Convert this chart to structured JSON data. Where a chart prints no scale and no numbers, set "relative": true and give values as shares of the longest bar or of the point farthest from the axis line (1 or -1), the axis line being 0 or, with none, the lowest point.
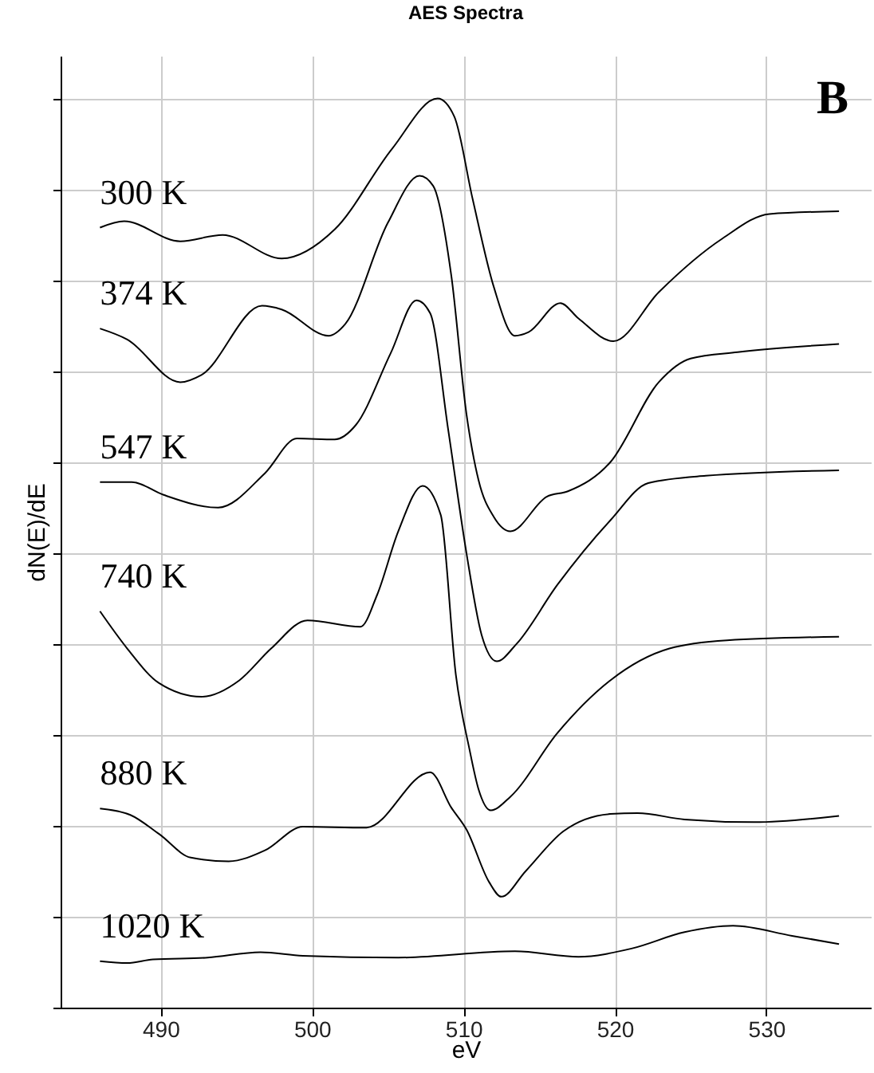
{
  "chart_data": {
    "type": "line",
    "title": "AES Spectra",
    "xlabel": "eV",
    "ylabel": "dN(E)/dE",
    "annotations": [
      "B"
    ],
    "relative": true,
    "grid": true,
    "legend": "left",
    "xlim": [
      483.4,
      536.9
    ],
    "xticks": [
      490,
      500,
      510,
      520,
      530
    ],
    "series": [
      {
        "name": "300 K",
        "color": "#000000",
        "x": [
          486.0,
          487.6,
          491.3,
          494.1,
          498.0,
          501.5,
          505.3,
          508.3,
          509.4,
          510.6,
          512.0,
          513.4,
          514.3,
          516.4,
          517.6,
          519.9,
          522.9,
          527.1,
          530.2,
          534.8
        ],
        "values": [
          0.858,
          0.865,
          0.843,
          0.85,
          0.824,
          0.856,
          0.945,
          1.0,
          0.98,
          0.89,
          0.793,
          0.739,
          0.743,
          0.775,
          0.758,
          0.733,
          0.787,
          0.846,
          0.873,
          0.876
        ]
      },
      {
        "name": "374 K",
        "color": "#000000",
        "x": [
          486.0,
          487.8,
          491.3,
          492.7,
          496.7,
          498.0,
          501.1,
          502.2,
          505.0,
          507.1,
          508.0,
          509.2,
          510.2,
          511.0,
          512.0,
          513.1,
          515.5,
          516.9,
          519.7,
          522.9,
          525.0,
          528.1,
          534.8
        ],
        "values": [
          0.747,
          0.735,
          0.688,
          0.696,
          0.772,
          0.768,
          0.739,
          0.752,
          0.863,
          0.915,
          0.904,
          0.805,
          0.653,
          0.58,
          0.54,
          0.524,
          0.562,
          0.568,
          0.6,
          0.688,
          0.714,
          0.721,
          0.73
        ]
      },
      {
        "name": "547 K",
        "color": "#000000",
        "x": [
          486.0,
          488.1,
          490.2,
          493.8,
          496.9,
          499.0,
          501.5,
          502.9,
          505.2,
          506.9,
          507.8,
          509.0,
          510.2,
          511.2,
          512.2,
          513.5,
          516.2,
          519.7,
          522.2,
          526.0,
          534.8
        ],
        "values": [
          0.578,
          0.578,
          0.564,
          0.55,
          0.588,
          0.626,
          0.625,
          0.641,
          0.72,
          0.778,
          0.764,
          0.635,
          0.5,
          0.41,
          0.381,
          0.4,
          0.465,
          0.536,
          0.577,
          0.585,
          0.591
        ]
      },
      {
        "name": "740 K",
        "color": "#000000",
        "x": [
          486.0,
          487.8,
          489.9,
          492.7,
          495.2,
          497.3,
          499.7,
          503.2,
          504.3,
          505.7,
          507.3,
          508.5,
          509.5,
          510.4,
          511.0,
          511.8,
          513.1,
          516.2,
          519.7,
          523.6,
          527.4,
          534.8
        ],
        "values": [
          0.436,
          0.395,
          0.357,
          0.342,
          0.36,
          0.395,
          0.426,
          0.419,
          0.454,
          0.524,
          0.574,
          0.542,
          0.366,
          0.284,
          0.24,
          0.217,
          0.232,
          0.302,
          0.36,
          0.395,
          0.404,
          0.408
        ]
      },
      {
        "name": "880 K",
        "color": "#000000",
        "x": [
          486.0,
          488.0,
          489.9,
          492.0,
          494.5,
          496.9,
          499.4,
          503.6,
          507.8,
          509.2,
          510.2,
          511.7,
          512.5,
          514.1,
          516.6,
          519.7,
          521.5,
          524.6,
          529.2,
          534.8
        ],
        "values": [
          0.219,
          0.212,
          0.191,
          0.165,
          0.161,
          0.173,
          0.199,
          0.198,
          0.259,
          0.22,
          0.196,
          0.138,
          0.122,
          0.15,
          0.194,
          0.213,
          0.214,
          0.207,
          0.204,
          0.211
        ]
      },
      {
        "name": "1020 K",
        "color": "#000000",
        "x": [
          486.0,
          487.8,
          489.5,
          493.1,
          496.6,
          499.4,
          505.7,
          513.4,
          517.6,
          521.1,
          524.6,
          527.8,
          531.7,
          534.8
        ],
        "values": [
          0.051,
          0.049,
          0.053,
          0.055,
          0.061,
          0.057,
          0.055,
          0.062,
          0.056,
          0.065,
          0.083,
          0.09,
          0.079,
          0.07
        ]
      }
    ]
  }
}
